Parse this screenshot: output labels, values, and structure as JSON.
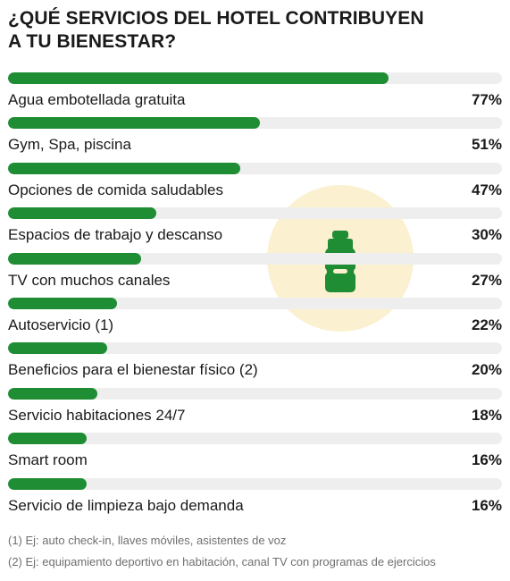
{
  "chart_data": {
    "type": "bar",
    "title_lines": [
      "¿QUÉ SERVICIOS DEL HOTEL CONTRIBUYEN",
      "A TU BIENESTAR?"
    ],
    "categories": [
      "Agua embotellada gratuita",
      "Gym, Spa, piscina",
      "Opciones de comida saludables",
      "Espacios de trabajo y descanso",
      "TV con muchos canales",
      "Autoservicio (1)",
      "Beneficios para el bienestar físico (2)",
      "Servicio habitaciones 24/7",
      "Smart room",
      "Servicio de limpieza bajo demanda"
    ],
    "values": [
      77,
      51,
      47,
      30,
      27,
      22,
      20,
      18,
      16,
      16
    ],
    "value_labels": [
      "77%",
      "51%",
      "47%",
      "30%",
      "27%",
      "22%",
      "20%",
      "18%",
      "16%",
      "16%"
    ],
    "xlim": [
      0,
      100
    ],
    "orientation": "horizontal",
    "xlabel": "",
    "ylabel": "",
    "grid": false,
    "colors": {
      "bar": "#1f8d34",
      "track": "#eeeeee",
      "text": "#1a1a1a",
      "badge": "#fbf0cf"
    }
  },
  "icon": "water-bottle-icon",
  "footnotes": [
    "(1) Ej: auto check-in, llaves móviles, asistentes de voz",
    "(2) Ej: equipamiento deportivo en habitación, canal TV con programas de ejercicios"
  ]
}
